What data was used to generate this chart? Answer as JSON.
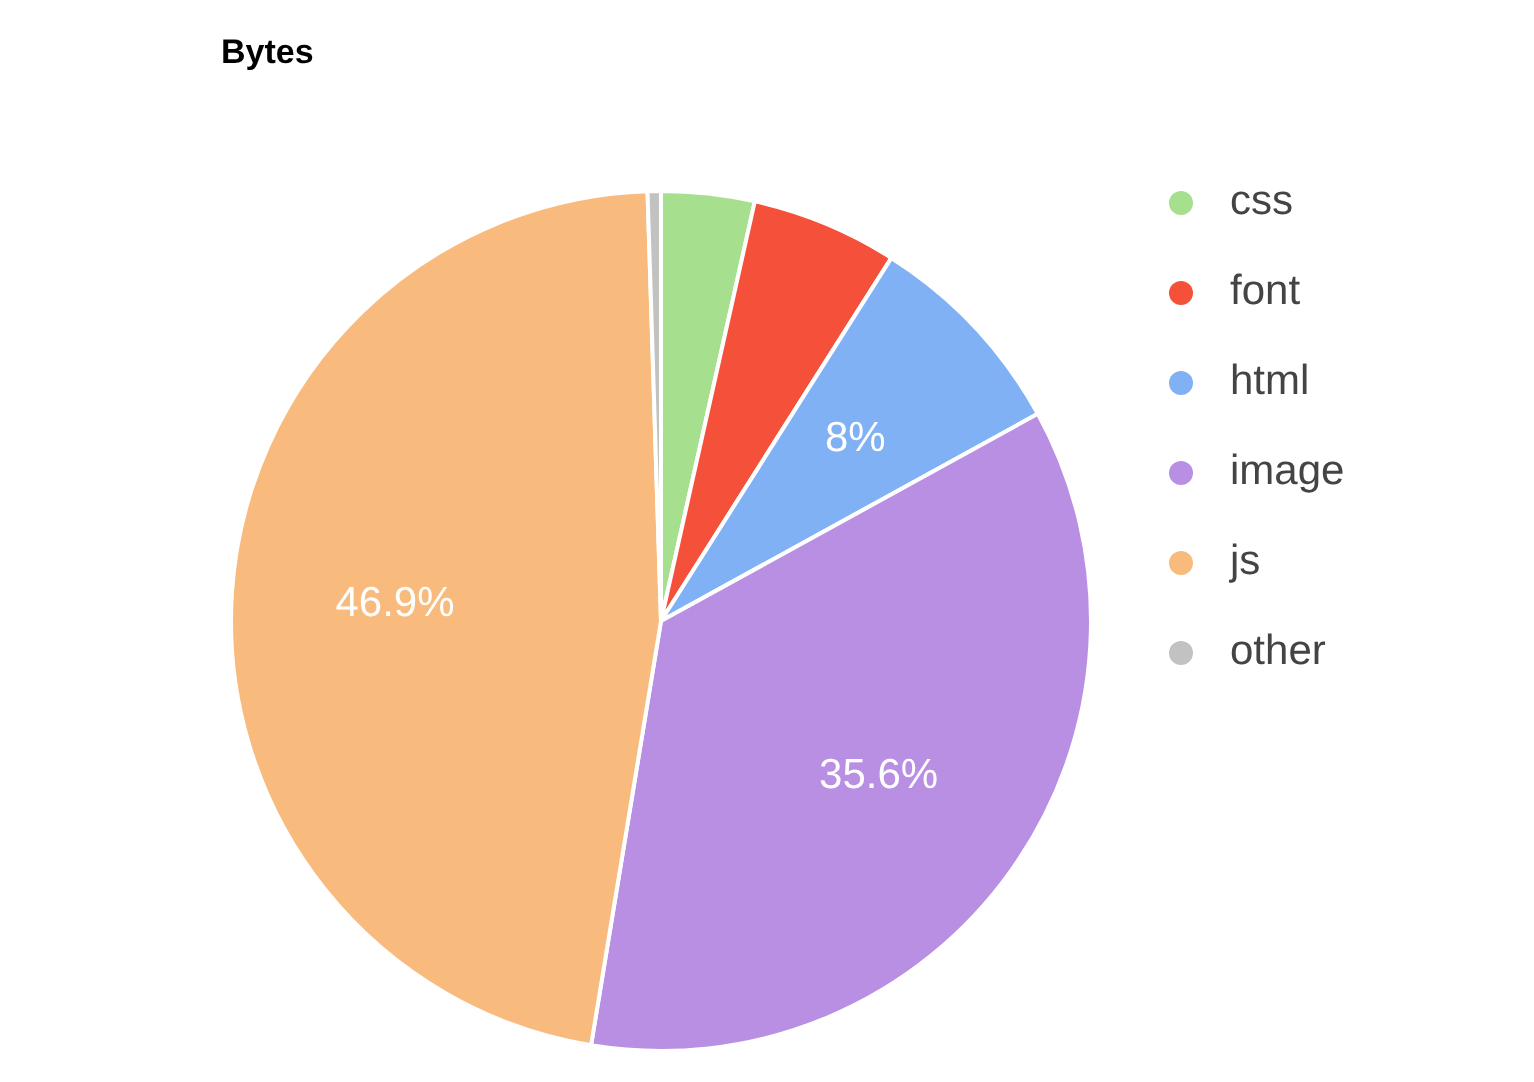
{
  "chart_data": {
    "type": "pie",
    "title": "Bytes",
    "categories": [
      "css",
      "font",
      "html",
      "image",
      "js",
      "other"
    ],
    "values": [
      3.5,
      5.5,
      8,
      35.6,
      46.9,
      0.5
    ],
    "colors": [
      "#a6e08e",
      "#f4503a",
      "#80b1f5",
      "#b98fe4",
      "#f9bb7d",
      "#c2c2c2"
    ],
    "value_labels": [
      null,
      null,
      "8%",
      "35.6%",
      "46.9%",
      null
    ],
    "legend": "right"
  }
}
